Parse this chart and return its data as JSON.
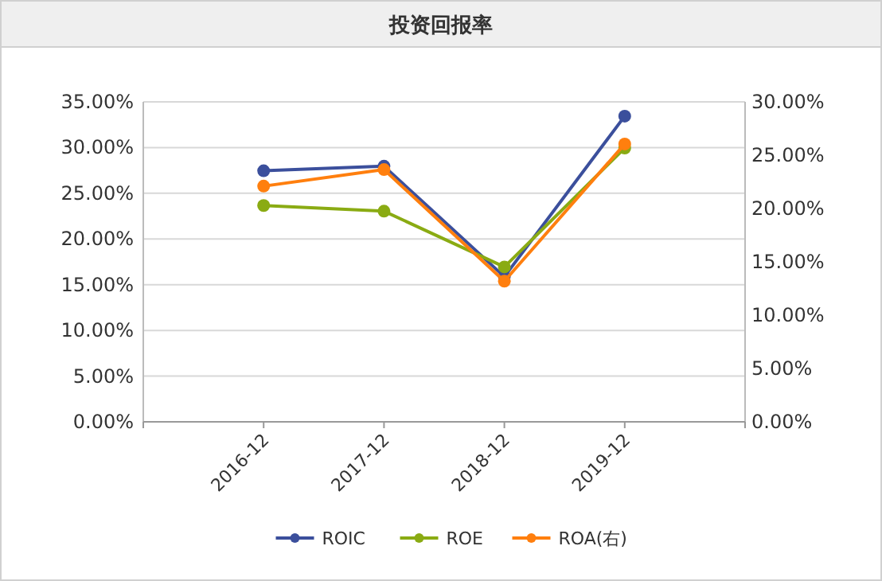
{
  "chart_data": {
    "type": "line",
    "title": "投资回报率",
    "categories": [
      "2016-12",
      "2017-12",
      "2018-12",
      "2019-12"
    ],
    "series": [
      {
        "name": "ROIC",
        "color": "#3b4f9c",
        "values": [
          27.46,
          27.96,
          15.88,
          33.44
        ]
      },
      {
        "name": "ROE",
        "color": "#8aab13",
        "values": [
          23.66,
          23.04,
          16.94,
          29.95
        ]
      },
      {
        "name": "ROA(右)",
        "color": "#ff7f0e",
        "values": [
          22.1,
          23.65,
          13.19,
          26.05
        ],
        "axis": "y2"
      }
    ],
    "ylim": [
      0,
      35
    ],
    "yticks": [
      {
        "value": 0,
        "label": "0.00%"
      },
      {
        "value": 5,
        "label": "5.00%"
      },
      {
        "value": 10,
        "label": "10.00%"
      },
      {
        "value": 15,
        "label": "15.00%"
      },
      {
        "value": 20,
        "label": "20.00%"
      },
      {
        "value": 25,
        "label": "25.00%"
      },
      {
        "value": 30,
        "label": "30.00%"
      },
      {
        "value": 35,
        "label": "35.00%"
      }
    ],
    "y2lim": [
      0,
      30
    ],
    "y2ticks": [
      {
        "value": 0,
        "label": "0.00%"
      },
      {
        "value": 5,
        "label": "5.00%"
      },
      {
        "value": 10,
        "label": "10.00%"
      },
      {
        "value": 15,
        "label": "15.00%"
      },
      {
        "value": 20,
        "label": "20.00%"
      },
      {
        "value": 25,
        "label": "25.00%"
      },
      {
        "value": 30,
        "label": "30.00%"
      }
    ],
    "grid": "y",
    "legend": "bottom",
    "marker": "circle",
    "line_style": "solid"
  }
}
